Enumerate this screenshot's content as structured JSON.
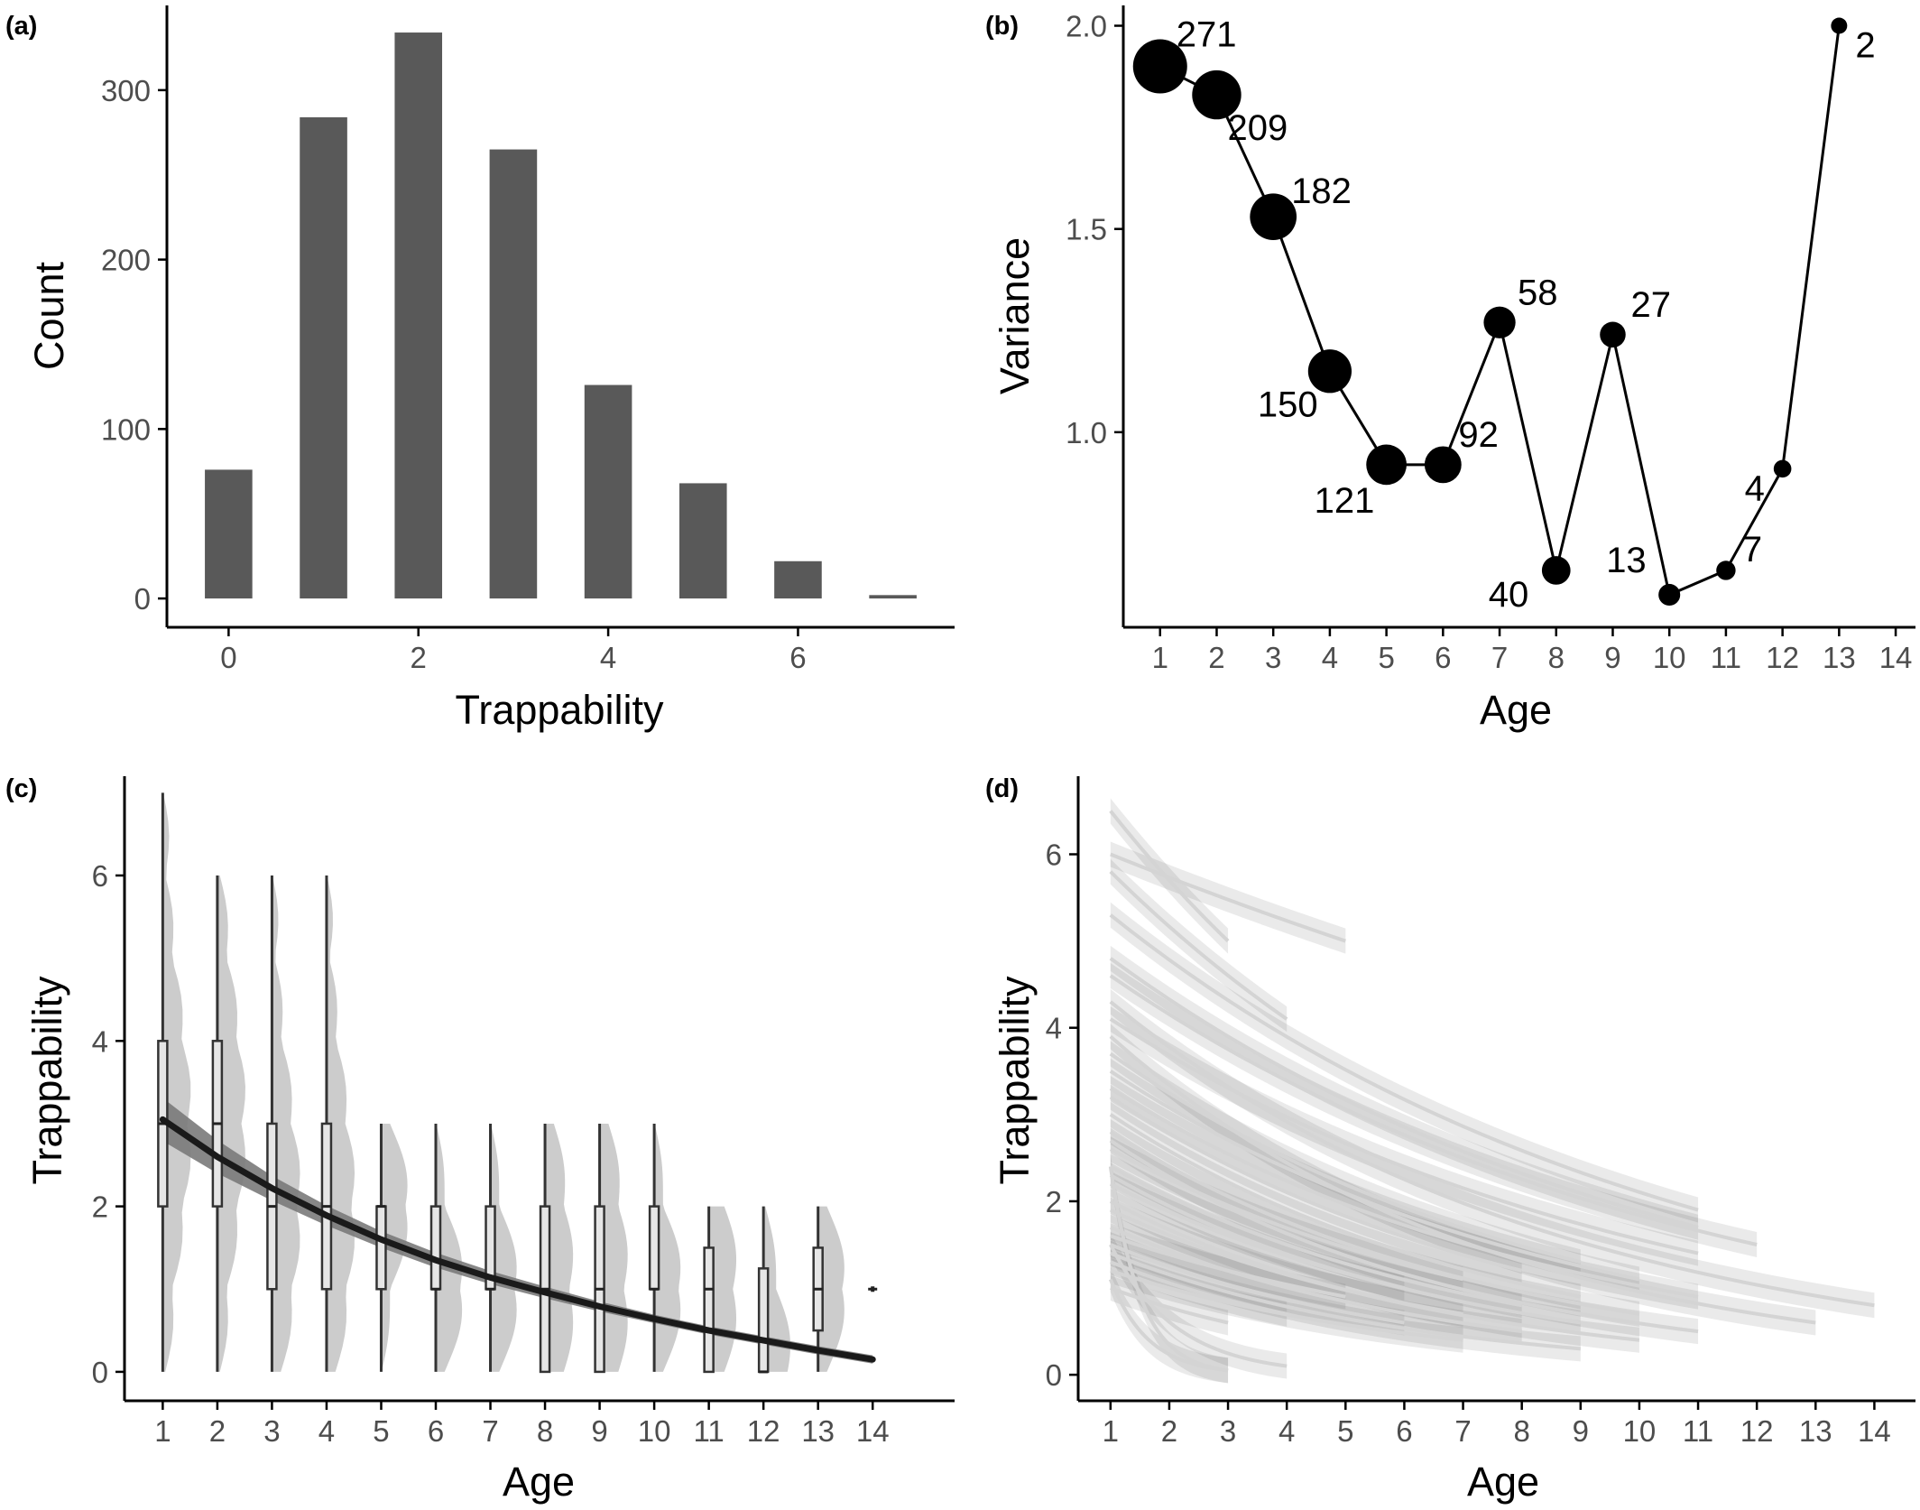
{
  "chart_data": [
    {
      "panel": "(a)",
      "type": "bar",
      "xlabel": "Trappability",
      "ylabel": "Count",
      "categories": [
        0,
        1,
        2,
        3,
        4,
        5,
        6,
        7
      ],
      "values": [
        76,
        284,
        334,
        265,
        126,
        68,
        22,
        2
      ],
      "x_ticks": [
        0,
        2,
        4,
        6
      ],
      "y_ticks": [
        0,
        100,
        200,
        300
      ],
      "xlim": [
        -0.65,
        7.65
      ],
      "ylim": [
        -17,
        350
      ],
      "bar_color": "#595959",
      "grid": false
    },
    {
      "panel": "(b)",
      "type": "scatter",
      "xlabel": "Age",
      "ylabel": "Variance",
      "x": [
        1,
        2,
        3,
        4,
        5,
        6,
        7,
        8,
        9,
        10,
        11,
        12,
        13
      ],
      "y": [
        1.9,
        1.83,
        1.53,
        1.15,
        0.92,
        0.92,
        1.27,
        0.66,
        1.24,
        0.6,
        0.66,
        0.91,
        2.0
      ],
      "n": [
        271,
        209,
        182,
        150,
        121,
        92,
        58,
        40,
        27,
        13,
        7,
        4,
        2
      ],
      "labels": [
        "271",
        "209",
        "182",
        "150",
        "121",
        "92",
        "58",
        "40",
        "27",
        "13",
        "7",
        "4",
        "2"
      ],
      "x_ticks": [
        1,
        2,
        3,
        4,
        5,
        6,
        7,
        8,
        9,
        10,
        11,
        12,
        13,
        14
      ],
      "y_ticks": [
        1.0,
        1.5,
        2.0
      ],
      "y_tick_labels": [
        "1.0",
        "1.5",
        "2.0"
      ],
      "xlim": [
        0.35,
        14.35
      ],
      "ylim": [
        0.52,
        2.05
      ],
      "connected": true,
      "point_size_encodes": "n",
      "grid": false
    },
    {
      "panel": "(c)",
      "type": "box",
      "xlabel": "Age",
      "ylabel": "Trappability",
      "x_ticks": [
        1,
        2,
        3,
        4,
        5,
        6,
        7,
        8,
        9,
        10,
        11,
        12,
        13,
        14
      ],
      "y_ticks": [
        0,
        2,
        4,
        6
      ],
      "xlim": [
        0.3,
        15.5
      ],
      "ylim": [
        -0.35,
        7.2
      ],
      "boxes": [
        {
          "age": 1,
          "min": 0,
          "q1": 2,
          "median": 3,
          "q3": 4,
          "max": 7
        },
        {
          "age": 2,
          "min": 0,
          "q1": 2,
          "median": 3,
          "q3": 4,
          "max": 6
        },
        {
          "age": 3,
          "min": 0,
          "q1": 1,
          "median": 2,
          "q3": 3,
          "max": 6
        },
        {
          "age": 4,
          "min": 0,
          "q1": 1,
          "median": 2,
          "q3": 3,
          "max": 6
        },
        {
          "age": 5,
          "min": 0,
          "q1": 1,
          "median": 2,
          "q3": 2,
          "max": 3
        },
        {
          "age": 6,
          "min": 0,
          "q1": 1,
          "median": 1,
          "q3": 2,
          "max": 3
        },
        {
          "age": 7,
          "min": 0,
          "q1": 1,
          "median": 1,
          "q3": 2,
          "max": 3
        },
        {
          "age": 8,
          "min": 0,
          "q1": 0,
          "median": 1,
          "q3": 2,
          "max": 3
        },
        {
          "age": 9,
          "min": 0,
          "q1": 0,
          "median": 1,
          "q3": 2,
          "max": 3
        },
        {
          "age": 10,
          "min": 0,
          "q1": 1,
          "median": 1,
          "q3": 2,
          "max": 3
        },
        {
          "age": 11,
          "min": 0,
          "q1": 0,
          "median": 1,
          "q3": 1.5,
          "max": 2
        },
        {
          "age": 12,
          "min": 0,
          "q1": 0,
          "median": 0,
          "q3": 1.25,
          "max": 2
        },
        {
          "age": 13,
          "min": 0,
          "q1": 0.5,
          "median": 1,
          "q3": 1.5,
          "max": 2
        },
        {
          "age": 14,
          "min": 1,
          "q1": 1,
          "median": 1,
          "q3": 1,
          "max": 1
        }
      ],
      "trend": {
        "age": [
          1,
          2,
          3,
          4,
          5,
          6,
          7,
          8,
          9,
          10,
          11,
          12,
          13,
          14
        ],
        "fit": [
          3.05,
          2.6,
          2.22,
          1.89,
          1.6,
          1.35,
          1.14,
          0.96,
          0.79,
          0.64,
          0.5,
          0.38,
          0.26,
          0.15
        ],
        "band_halfwidth": [
          0.26,
          0.2,
          0.15,
          0.12,
          0.1,
          0.09,
          0.08,
          0.07,
          0.06,
          0.05,
          0.05,
          0.05,
          0.05,
          0.05
        ]
      },
      "grid": false
    },
    {
      "panel": "(d)",
      "type": "line",
      "xlabel": "Age",
      "ylabel": "Trappability",
      "x_ticks": [
        1,
        2,
        3,
        4,
        5,
        6,
        7,
        8,
        9,
        10,
        11,
        12,
        13,
        14
      ],
      "y_ticks": [
        0,
        2,
        4,
        6
      ],
      "xlim": [
        0.45,
        14.7
      ],
      "ylim": [
        -0.3,
        6.9
      ],
      "description_series": "individual-level fitted trajectories (approx.)",
      "series": [
        {
          "start": 1,
          "end": 3,
          "y0": 6.5,
          "y1": 5.0
        },
        {
          "start": 1,
          "end": 5,
          "y0": 6.0,
          "y1": 5.0
        },
        {
          "start": 1,
          "end": 4,
          "y0": 5.8,
          "y1": 4.1
        },
        {
          "start": 1,
          "end": 11,
          "y0": 5.3,
          "y1": 1.9
        },
        {
          "start": 1,
          "end": 11,
          "y0": 4.8,
          "y1": 1.7
        },
        {
          "start": 1,
          "end": 12,
          "y0": 4.6,
          "y1": 1.5
        },
        {
          "start": 1,
          "end": 14,
          "y0": 4.3,
          "y1": 0.8
        },
        {
          "start": 1,
          "end": 11,
          "y0": 4.1,
          "y1": 1.4
        },
        {
          "start": 1,
          "end": 13,
          "y0": 3.9,
          "y1": 0.6
        },
        {
          "start": 1,
          "end": 9,
          "y0": 3.7,
          "y1": 1.3
        },
        {
          "start": 1,
          "end": 10,
          "y0": 3.5,
          "y1": 1.1
        },
        {
          "start": 1,
          "end": 11,
          "y0": 3.3,
          "y1": 0.9
        },
        {
          "start": 1,
          "end": 8,
          "y0": 3.2,
          "y1": 1.2
        },
        {
          "start": 1,
          "end": 9,
          "y0": 3.0,
          "y1": 0.9
        },
        {
          "start": 1,
          "end": 10,
          "y0": 2.8,
          "y1": 0.7
        },
        {
          "start": 1,
          "end": 11,
          "y0": 2.7,
          "y1": 0.5
        },
        {
          "start": 1,
          "end": 7,
          "y0": 2.6,
          "y1": 1.1
        },
        {
          "start": 1,
          "end": 8,
          "y0": 2.4,
          "y1": 0.8
        },
        {
          "start": 1,
          "end": 9,
          "y0": 2.3,
          "y1": 0.6
        },
        {
          "start": 1,
          "end": 6,
          "y0": 2.2,
          "y1": 1.0
        },
        {
          "start": 1,
          "end": 10,
          "y0": 2.0,
          "y1": 0.4
        },
        {
          "start": 1,
          "end": 7,
          "y0": 1.9,
          "y1": 0.7
        },
        {
          "start": 1,
          "end": 8,
          "y0": 1.7,
          "y1": 0.5
        },
        {
          "start": 1,
          "end": 5,
          "y0": 1.6,
          "y1": 0.9
        },
        {
          "start": 1,
          "end": 6,
          "y0": 1.5,
          "y1": 0.6
        },
        {
          "start": 1,
          "end": 9,
          "y0": 1.4,
          "y1": 0.3
        },
        {
          "start": 1,
          "end": 4,
          "y0": 1.3,
          "y1": 0.7
        },
        {
          "start": 1,
          "end": 7,
          "y0": 1.2,
          "y1": 0.4
        },
        {
          "start": 1,
          "end": 3,
          "y0": 1.0,
          "y1": 0.6
        },
        {
          "start": 1,
          "end": 4,
          "y0": 1.5,
          "y1": 0.1
        },
        {
          "start": 1,
          "end": 3,
          "y0": 2.4,
          "y1": 0.0
        },
        {
          "start": 1,
          "end": 3,
          "y0": 1.1,
          "y1": 0.0
        }
      ],
      "grid": false
    }
  ],
  "panels": {
    "a": {
      "tag": "(a)",
      "xlabel": "Trappability",
      "ylabel": "Count"
    },
    "b": {
      "tag": "(b)",
      "xlabel": "Age",
      "ylabel": "Variance"
    },
    "c": {
      "tag": "(c)",
      "xlabel": "Age",
      "ylabel": "Trappability"
    },
    "d": {
      "tag": "(d)",
      "xlabel": "Age",
      "ylabel": "Trappability"
    }
  },
  "colors": {
    "bar": "#595959",
    "axis": "#000000",
    "tick_text": "#4d4d4d",
    "violin": "#cccccc",
    "trend": "#1a1a1a",
    "trend_band": "#7a7a7a",
    "trajectory": "#d4d4d4",
    "trajectory_band": "#555555"
  }
}
